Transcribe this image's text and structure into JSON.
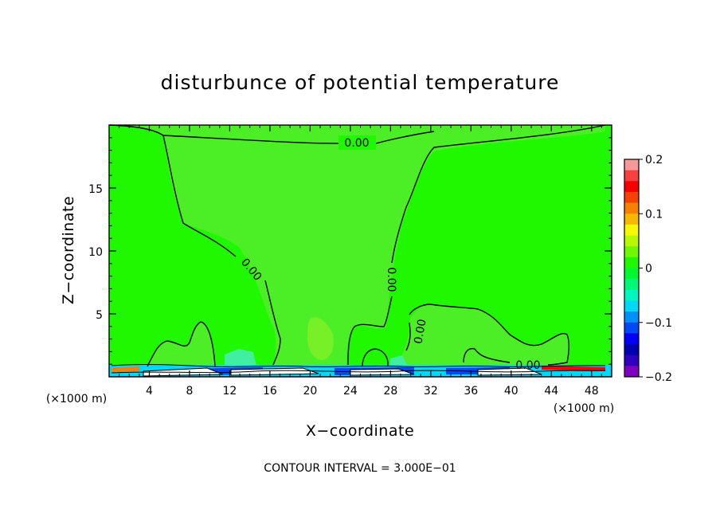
{
  "chart_data": {
    "type": "contour",
    "title": "disturbunce of potential temperature",
    "xlabel": "X−coordinate",
    "ylabel": "Z−coordinate",
    "x_unit_left": "(×1000 m)",
    "x_unit_right": "(×1000 m)",
    "xlim": [
      0,
      50
    ],
    "ylim": [
      0,
      20
    ],
    "x_ticks": [
      4,
      8,
      12,
      16,
      20,
      24,
      28,
      32,
      36,
      40,
      44,
      48
    ],
    "y_ticks": [
      5,
      10,
      15
    ],
    "contour_labels": [
      "0.00",
      "0.00",
      "0.00",
      "0.00",
      "0.00"
    ],
    "footer": "CONTOUR INTERVAL = 3.000E−01",
    "colorbar": {
      "ticks": [
        "0.2",
        "0.1",
        "0",
        "−0.1",
        "−0.2"
      ],
      "range": [
        -0.2,
        0.2
      ],
      "colors": [
        "#f89898",
        "#f84040",
        "#f80000",
        "#f84000",
        "#f88000",
        "#f8b800",
        "#f8f800",
        "#b8f800",
        "#70f800",
        "#20f800",
        "#00f830",
        "#00f878",
        "#00f8c0",
        "#00d8f8",
        "#0090f8",
        "#0048f8",
        "#0000f8",
        "#0000b0",
        "#3000c0",
        "#8000c0"
      ]
    },
    "background_color": "#20f800",
    "region_color": "#4cef26",
    "highlight_color": "#78f028",
    "line_color": "#000000"
  }
}
